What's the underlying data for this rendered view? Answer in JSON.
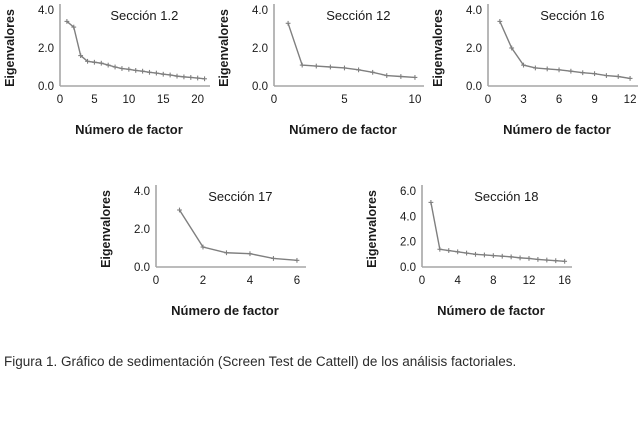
{
  "figure": {
    "caption": "Figura 1. Gráfico de sedimentación (Screen Test de Cattell) de los análisis factoriales."
  },
  "colors": {
    "line": "#7f7f7f",
    "axis": "#a6a6a6",
    "text": "#1a1a1a"
  },
  "chart_data": [
    {
      "type": "line",
      "title": "Sección 1.2",
      "xlabel": "Número de factor",
      "ylabel": "Eigenvalores",
      "x": [
        1,
        2,
        3,
        4,
        5,
        6,
        7,
        8,
        9,
        10,
        11,
        12,
        13,
        14,
        15,
        16,
        17,
        18,
        19,
        20,
        21
      ],
      "values": [
        3.4,
        3.1,
        1.6,
        1.3,
        1.25,
        1.2,
        1.1,
        1.0,
        0.92,
        0.88,
        0.82,
        0.78,
        0.72,
        0.68,
        0.62,
        0.58,
        0.52,
        0.48,
        0.45,
        0.42,
        0.38
      ],
      "ylim": [
        0,
        4
      ],
      "xlim": [
        0,
        21.5
      ],
      "yticks": [
        "0.0",
        "2.0",
        "4.0"
      ],
      "xticks": [
        0,
        5,
        10,
        15,
        20
      ],
      "grid": false,
      "legend": "none"
    },
    {
      "type": "line",
      "title": "Sección 12",
      "xlabel": "Número de factor",
      "ylabel": "Eigenvalores",
      "x": [
        1,
        2,
        3,
        4,
        5,
        6,
        7,
        8,
        9,
        10
      ],
      "values": [
        3.3,
        1.1,
        1.05,
        1.0,
        0.95,
        0.85,
        0.72,
        0.55,
        0.5,
        0.45
      ],
      "ylim": [
        0,
        4
      ],
      "xlim": [
        0,
        10.5
      ],
      "yticks": [
        "0.0",
        "2.0",
        "4.0"
      ],
      "xticks": [
        0,
        5,
        10
      ],
      "grid": false,
      "legend": "none"
    },
    {
      "type": "line",
      "title": "Sección 16",
      "xlabel": "Número de factor",
      "ylabel": "Eigenvalores",
      "x": [
        1,
        2,
        3,
        4,
        5,
        6,
        7,
        8,
        9,
        10,
        11,
        12
      ],
      "values": [
        3.4,
        2.0,
        1.1,
        0.95,
        0.9,
        0.85,
        0.78,
        0.7,
        0.65,
        0.55,
        0.5,
        0.4
      ],
      "ylim": [
        0,
        4
      ],
      "xlim": [
        0,
        12.5
      ],
      "yticks": [
        "0.0",
        "2.0",
        "4.0"
      ],
      "xticks": [
        0,
        3,
        6,
        9,
        12
      ],
      "grid": false,
      "legend": "none"
    },
    {
      "type": "line",
      "title": "Sección 17",
      "xlabel": "Número de factor",
      "ylabel": "Eigenvalores",
      "x": [
        1,
        2,
        3,
        4,
        5,
        6
      ],
      "values": [
        3.0,
        1.05,
        0.75,
        0.7,
        0.45,
        0.35
      ],
      "ylim": [
        0,
        4
      ],
      "xlim": [
        0,
        6.3
      ],
      "yticks": [
        "0.0",
        "2.0",
        "4.0"
      ],
      "xticks": [
        0,
        2,
        4,
        6
      ],
      "grid": false,
      "legend": "none"
    },
    {
      "type": "line",
      "title": "Sección 18",
      "xlabel": "Número de factor",
      "ylabel": "Eigenvalores",
      "x": [
        1,
        2,
        3,
        4,
        5,
        6,
        7,
        8,
        9,
        10,
        11,
        12,
        13,
        14,
        15,
        16
      ],
      "values": [
        5.1,
        1.4,
        1.3,
        1.2,
        1.1,
        1.0,
        0.95,
        0.9,
        0.85,
        0.8,
        0.72,
        0.68,
        0.6,
        0.55,
        0.5,
        0.45
      ],
      "ylim": [
        0,
        6
      ],
      "xlim": [
        0,
        16.6
      ],
      "yticks": [
        "0.0",
        "2.0",
        "4.0",
        "6.0"
      ],
      "xticks": [
        0,
        4,
        8,
        12,
        16
      ],
      "grid": false,
      "legend": "none"
    }
  ]
}
